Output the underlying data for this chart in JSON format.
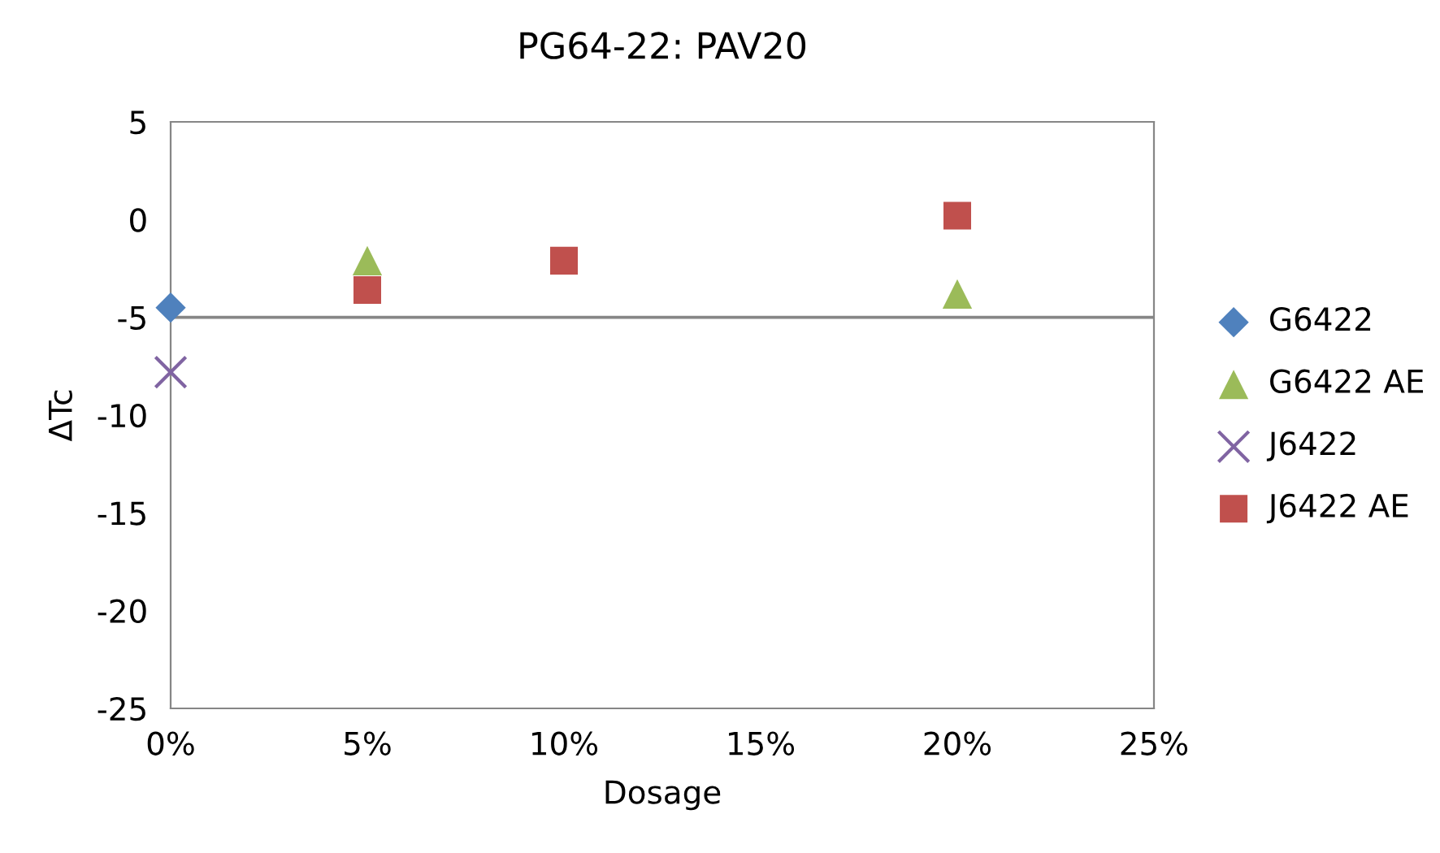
{
  "chart_data": {
    "type": "scatter",
    "title": "PG64-22: PAV20",
    "xlabel": "Dosage",
    "ylabel": "ΔTc",
    "xlim": [
      0,
      0.25
    ],
    "xticks": [
      {
        "value": 0,
        "label": "0%"
      },
      {
        "value": 0.05,
        "label": "5%"
      },
      {
        "value": 0.1,
        "label": "10%"
      },
      {
        "value": 0.15,
        "label": "15%"
      },
      {
        "value": 0.2,
        "label": "20%"
      },
      {
        "value": 0.25,
        "label": "25%"
      }
    ],
    "ylim": [
      -25,
      5
    ],
    "yticks": [
      -25,
      -20,
      -15,
      -10,
      -5,
      0,
      5
    ],
    "grid": false,
    "legend": "right",
    "ref_lines": [
      {
        "axis": "y",
        "value": -5,
        "color": "#868686"
      }
    ],
    "series": [
      {
        "name": "G6422",
        "color": "#4f81bd",
        "marker": "diamond",
        "x": [
          0
        ],
        "values": [
          -4.5
        ]
      },
      {
        "name": "G6422 AE",
        "color": "#9bbb59",
        "marker": "triangle",
        "x": [
          0.05,
          0.2
        ],
        "values": [
          -2.1,
          -3.8
        ]
      },
      {
        "name": "J6422",
        "color": "#8064a2",
        "marker": "cross",
        "x": [
          0
        ],
        "values": [
          -7.8
        ]
      },
      {
        "name": "J6422 AE",
        "color": "#c0504d",
        "marker": "square",
        "x": [
          0.05,
          0.1,
          0.2
        ],
        "values": [
          -3.6,
          -2.1,
          0.2
        ]
      }
    ]
  }
}
